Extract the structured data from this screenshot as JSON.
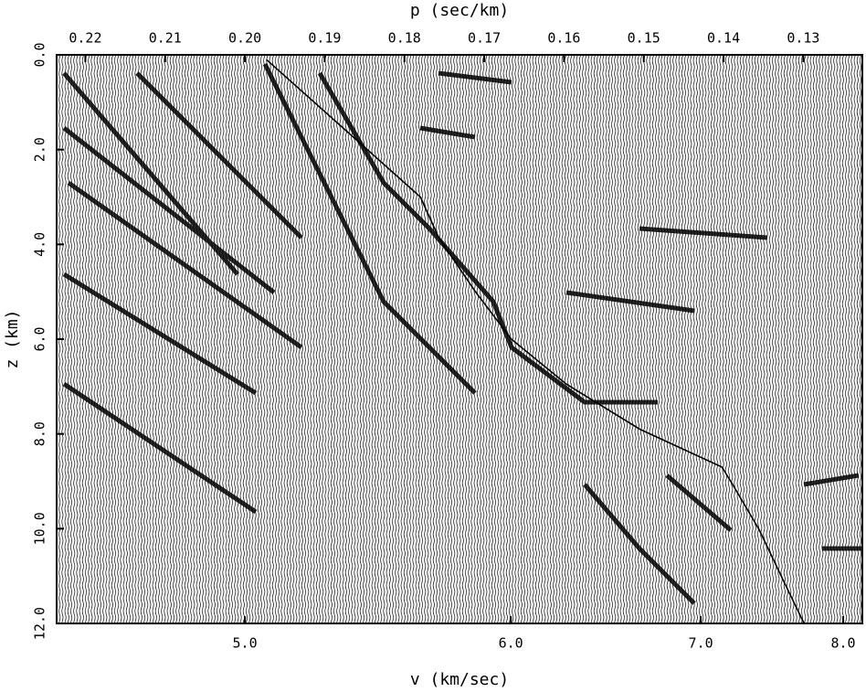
{
  "chart_data": {
    "type": "line",
    "x_label": "v (km/sec)",
    "x2_label": "p (sec/km)",
    "y_label": "z (km)",
    "xscale": "reciprocal",
    "xlim": [
      4.47,
      8.16
    ],
    "xticks": [
      {
        "value": 5,
        "label": "5.0"
      },
      {
        "value": 6,
        "label": "6.0"
      },
      {
        "value": 7,
        "label": "7.0"
      },
      {
        "value": 8,
        "label": "8.0"
      }
    ],
    "x2lim": [
      0.2236,
      0.1226
    ],
    "x2ticks": [
      0.22,
      0.21,
      {
        "value": 0.2,
        "label": "0.20"
      },
      0.19,
      0.18,
      0.17,
      0.16,
      0.15,
      0.14,
      0.13
    ],
    "ylim": [
      0,
      12
    ],
    "y_inverted": true,
    "yticks": [
      {
        "value": 0,
        "label": "0.0"
      },
      {
        "value": 2,
        "label": "2.0"
      },
      {
        "value": 4,
        "label": "4.0"
      },
      {
        "value": 6,
        "label": "6.0"
      },
      {
        "value": 8,
        "label": "8.0"
      },
      {
        "value": 10,
        "label": "10.0"
      },
      {
        "value": 12,
        "label": "12.0"
      }
    ],
    "series": [
      {
        "axis": "x2",
        "color": "#000000",
        "x": [
          0.1973,
          0.178,
          0.1757,
          0.1711,
          0.1666,
          0.1597,
          0.1505,
          0.1402,
          0.1391,
          0.1356,
          0.1322,
          0.1299
        ],
        "values": [
          0.1,
          3.0,
          3.86,
          5.0,
          6.0,
          6.95,
          7.9,
          8.7,
          9.0,
          10.0,
          11.2,
          12.0
        ]
      }
    ]
  }
}
